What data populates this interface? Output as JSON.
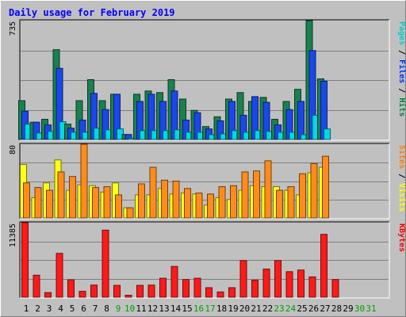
{
  "chart_data": {
    "type": "bar",
    "title": "Daily usage for February 2019",
    "categories": [
      "1",
      "2",
      "3",
      "4",
      "5",
      "6",
      "7",
      "8",
      "9",
      "10",
      "11",
      "12",
      "13",
      "14",
      "15",
      "16",
      "17",
      "18",
      "19",
      "20",
      "21",
      "22",
      "23",
      "24",
      "25",
      "26",
      "27",
      "28",
      "29",
      "30",
      "31"
    ],
    "weekend_categories": [
      "9",
      "10",
      "16",
      "17",
      "23",
      "24",
      "30",
      "31"
    ],
    "panels": [
      {
        "id": "hits",
        "max_label": "735",
        "ylim": [
          0,
          735
        ],
        "legend": [
          {
            "text": "Pages",
            "color": "#00cccc"
          },
          {
            "text": " / ",
            "color": "#000000"
          },
          {
            "text": "Files",
            "color": "#0033ff"
          },
          {
            "text": " / ",
            "color": "#000000"
          },
          {
            "text": "Hits",
            "color": "#008040"
          }
        ],
        "series": [
          {
            "name": "Hits",
            "color": "#1a8050",
            "values": [
              240,
              107,
              125,
              555,
              95,
              240,
              370,
              240,
              280,
              31,
              280,
              300,
              290,
              370,
              250,
              180,
              80,
              140,
              250,
              290,
              235,
              260,
              125,
              235,
              310,
              735,
              375,
              0,
              0,
              0,
              0
            ]
          },
          {
            "name": "Files",
            "color": "#1a48e8",
            "values": [
              175,
              107,
              90,
              440,
              70,
              120,
              285,
              185,
              280,
              31,
              235,
              280,
              235,
              300,
              120,
              165,
              65,
              115,
              235,
              150,
              265,
              230,
              90,
              185,
              235,
              550,
              360,
              0,
              0,
              0,
              0
            ]
          },
          {
            "name": "Pages",
            "color": "#00d8e8",
            "values": [
              95,
              40,
              50,
              110,
              45,
              45,
              70,
              60,
              65,
              8,
              55,
              55,
              55,
              60,
              45,
              45,
              30,
              35,
              55,
              45,
              55,
              50,
              45,
              45,
              30,
              150,
              65,
              0,
              0,
              0,
              0
            ]
          }
        ]
      },
      {
        "id": "visits",
        "max_label": "80",
        "ylim": [
          0,
          80
        ],
        "legend": [
          {
            "text": "Sites",
            "color": "#ff8000"
          },
          {
            "text": " / ",
            "color": "#000000"
          },
          {
            "text": "Visits",
            "color": "#ffff00"
          }
        ],
        "series": [
          {
            "name": "Visits",
            "color": "#ffff1a",
            "values": [
              58,
              22,
              38,
              63,
              30,
              36,
              35,
              28,
              38,
              11,
              25,
              25,
              32,
              26,
              27,
              26,
              14,
              22,
              20,
              30,
              35,
              34,
              34,
              30,
              25,
              49,
              55,
              0,
              0,
              0,
              0
            ]
          },
          {
            "name": "Sites",
            "color": "#ff8c1a",
            "values": [
              38,
              33,
              30,
              50,
              45,
              80,
              33,
              34,
              25,
              11,
              37,
              55,
              41,
              40,
              32,
              27,
              26,
              34,
              35,
              50,
              51,
              62,
              30,
              34,
              48,
              59,
              67,
              0,
              0,
              0,
              0
            ]
          }
        ]
      },
      {
        "id": "kbytes",
        "max_label": "11385",
        "ylim": [
          0,
          11385
        ],
        "legend": [
          {
            "text": "KBytes",
            "color": "#ff0000"
          }
        ],
        "series": [
          {
            "name": "KBytes",
            "color": "#ff1a1a",
            "values": [
              11385,
              3350,
              700,
              6700,
              2650,
              900,
              1850,
              10250,
              1800,
              300,
              1800,
              1850,
              2900,
              4700,
              2700,
              2900,
              1450,
              800,
              1450,
              5600,
              2600,
              4300,
              5600,
              3900,
              4150,
              3100,
              9600,
              2700,
              0,
              0,
              0
            ]
          }
        ]
      }
    ]
  }
}
